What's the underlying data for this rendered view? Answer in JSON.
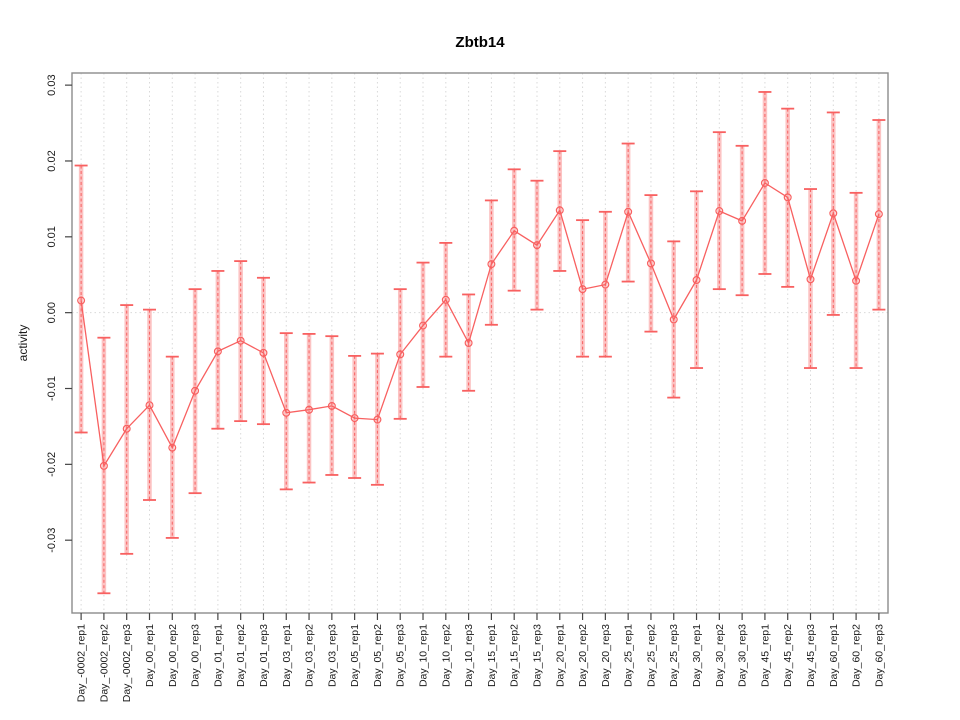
{
  "title": "Zbtb14",
  "ylabel": "activity",
  "xlabel": "",
  "colors": {
    "series": "#f86060",
    "error_band": "#fbb0b0",
    "grid": "#d9d9d9",
    "box": "#8c8c8c",
    "tick": "#444444",
    "text": "#1a1a1a"
  },
  "chart_data": {
    "type": "line",
    "title": "Zbtb14",
    "ylabel": "activity",
    "xlabel": "",
    "legend_position": "none",
    "grid": "vertical dotted line at each category; horizontal dotted line at y=0",
    "marker": "open-circle",
    "error_bars": true,
    "yticks": [
      -0.03,
      -0.02,
      -0.01,
      0.0,
      0.01,
      0.02,
      0.03
    ],
    "ytick_labels": [
      "-0.03",
      "-0.02",
      "-0.01",
      "0.00",
      "0.01",
      "0.02",
      "0.03"
    ],
    "ylim": [
      -0.0396,
      0.0316
    ],
    "categories": [
      "Day_-0002_rep1",
      "Day_-0002_rep2",
      "Day_-0002_rep3",
      "Day_00_rep1",
      "Day_00_rep2",
      "Day_00_rep3",
      "Day_01_rep1",
      "Day_01_rep2",
      "Day_01_rep3",
      "Day_03_rep1",
      "Day_03_rep2",
      "Day_03_rep3",
      "Day_05_rep1",
      "Day_05_rep2",
      "Day_05_rep3",
      "Day_10_rep1",
      "Day_10_rep2",
      "Day_10_rep3",
      "Day_15_rep1",
      "Day_15_rep2",
      "Day_15_rep3",
      "Day_20_rep1",
      "Day_20_rep2",
      "Day_20_rep3",
      "Day_25_rep1",
      "Day_25_rep2",
      "Day_25_rep3",
      "Day_30_rep1",
      "Day_30_rep2",
      "Day_30_rep3",
      "Day_45_rep1",
      "Day_45_rep2",
      "Day_45_rep3",
      "Day_60_rep1",
      "Day_60_rep2",
      "Day_60_rep3"
    ],
    "series": [
      {
        "name": "activity",
        "values": [
          0.0016,
          -0.0202,
          -0.0153,
          -0.0122,
          -0.0178,
          -0.0103,
          -0.0051,
          -0.0037,
          -0.0053,
          -0.0132,
          -0.0128,
          -0.0123,
          -0.0139,
          -0.0141,
          -0.0055,
          -0.0017,
          0.0017,
          -0.004,
          0.0064,
          0.0108,
          0.0089,
          0.0135,
          0.0031,
          0.0037,
          0.0133,
          0.0065,
          -0.0009,
          0.0043,
          0.0134,
          0.0121,
          0.0171,
          0.0152,
          0.0044,
          0.0131,
          0.0042,
          0.013
        ]
      }
    ],
    "error_low": [
      -0.0158,
      -0.037,
      -0.0318,
      -0.0247,
      -0.0297,
      -0.0238,
      -0.0153,
      -0.0143,
      -0.0147,
      -0.0233,
      -0.0224,
      -0.0214,
      -0.0218,
      -0.0227,
      -0.014,
      -0.0098,
      -0.0058,
      -0.0103,
      -0.0016,
      0.0029,
      0.0004,
      0.0055,
      -0.0058,
      -0.0058,
      0.0041,
      -0.0025,
      -0.0112,
      -0.0073,
      0.0031,
      0.0023,
      0.0051,
      0.0034,
      -0.0073,
      -0.0003,
      -0.0073,
      0.0004
    ],
    "error_high": [
      0.0194,
      -0.0033,
      0.001,
      0.0004,
      -0.0058,
      0.0031,
      0.0055,
      0.0068,
      0.0046,
      -0.0027,
      -0.0028,
      -0.0031,
      -0.0057,
      -0.0054,
      0.0031,
      0.0066,
      0.0092,
      0.0024,
      0.0148,
      0.0189,
      0.0174,
      0.0213,
      0.0122,
      0.0133,
      0.0223,
      0.0155,
      0.0094,
      0.016,
      0.0238,
      0.022,
      0.0291,
      0.0269,
      0.0163,
      0.0264,
      0.0158,
      0.0254
    ]
  }
}
